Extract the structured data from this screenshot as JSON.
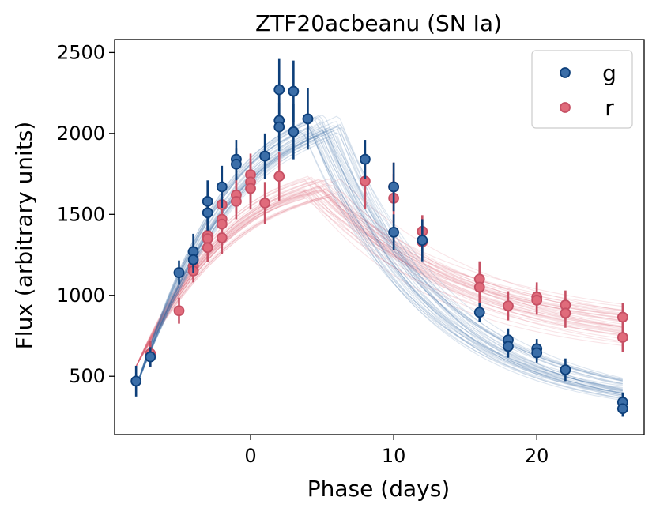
{
  "chart_data": {
    "type": "scatter",
    "title": "ZTF20acbeanu (SN Ia)",
    "xlabel": "Phase (days)",
    "ylabel": "Flux (arbitrary units)",
    "xlim": [
      -9.5,
      27.5
    ],
    "ylim": [
      140,
      2580
    ],
    "xticks": [
      0,
      10,
      20
    ],
    "yticks": [
      500,
      1000,
      1500,
      2000,
      2500
    ],
    "legend_position": "top-right",
    "grid": false,
    "colors": {
      "g": "#3b6ea8",
      "g_edge": "#0d3f7a",
      "r": "#e06b7b",
      "r_edge": "#c65064"
    },
    "series": [
      {
        "name": "g",
        "points": [
          {
            "x": -8,
            "y": 470,
            "err": 95
          },
          {
            "x": -7,
            "y": 620,
            "err": 60
          },
          {
            "x": -5,
            "y": 1140,
            "err": 75
          },
          {
            "x": -4,
            "y": 1270,
            "err": 110
          },
          {
            "x": -4,
            "y": 1220,
            "err": 80
          },
          {
            "x": -3,
            "y": 1580,
            "err": 130
          },
          {
            "x": -3,
            "y": 1510,
            "err": 110
          },
          {
            "x": -2,
            "y": 1670,
            "err": 130
          },
          {
            "x": -1,
            "y": 1840,
            "err": 120
          },
          {
            "x": -1,
            "y": 1810,
            "err": 100
          },
          {
            "x": 1,
            "y": 1860,
            "err": 140
          },
          {
            "x": 2,
            "y": 2270,
            "err": 190
          },
          {
            "x": 2,
            "y": 2080,
            "err": 170
          },
          {
            "x": 2,
            "y": 2040,
            "err": 150
          },
          {
            "x": 3,
            "y": 2260,
            "err": 190
          },
          {
            "x": 3,
            "y": 2010,
            "err": 170
          },
          {
            "x": 4,
            "y": 2090,
            "err": 190
          },
          {
            "x": 8,
            "y": 1840,
            "err": 120
          },
          {
            "x": 10,
            "y": 1670,
            "err": 150
          },
          {
            "x": 10,
            "y": 1390,
            "err": 110
          },
          {
            "x": 12,
            "y": 1340,
            "err": 130
          },
          {
            "x": 16,
            "y": 895,
            "err": 60
          },
          {
            "x": 18,
            "y": 725,
            "err": 70
          },
          {
            "x": 18,
            "y": 685,
            "err": 70
          },
          {
            "x": 20,
            "y": 670,
            "err": 60
          },
          {
            "x": 20,
            "y": 645,
            "err": 60
          },
          {
            "x": 22,
            "y": 540,
            "err": 70
          },
          {
            "x": 26,
            "y": 340,
            "err": 60
          },
          {
            "x": 26,
            "y": 300,
            "err": 50
          }
        ]
      },
      {
        "name": "r",
        "points": [
          {
            "x": -7,
            "y": 640,
            "err": 80
          },
          {
            "x": -5,
            "y": 905,
            "err": 80
          },
          {
            "x": -4,
            "y": 1180,
            "err": 80
          },
          {
            "x": -4,
            "y": 1150,
            "err": 70
          },
          {
            "x": -3,
            "y": 1370,
            "err": 90
          },
          {
            "x": -3,
            "y": 1350,
            "err": 90
          },
          {
            "x": -3,
            "y": 1295,
            "err": 90
          },
          {
            "x": -2,
            "y": 1560,
            "err": 110
          },
          {
            "x": -2,
            "y": 1470,
            "err": 110
          },
          {
            "x": -2,
            "y": 1440,
            "err": 100
          },
          {
            "x": -2,
            "y": 1355,
            "err": 100
          },
          {
            "x": -1,
            "y": 1620,
            "err": 110
          },
          {
            "x": -1,
            "y": 1580,
            "err": 110
          },
          {
            "x": 0,
            "y": 1745,
            "err": 130
          },
          {
            "x": 0,
            "y": 1700,
            "err": 130
          },
          {
            "x": 0,
            "y": 1660,
            "err": 130
          },
          {
            "x": 1,
            "y": 1570,
            "err": 130
          },
          {
            "x": 2,
            "y": 1735,
            "err": 150
          },
          {
            "x": 8,
            "y": 1705,
            "err": 170
          },
          {
            "x": 10,
            "y": 1670,
            "err": 150
          },
          {
            "x": 10,
            "y": 1600,
            "err": 150
          },
          {
            "x": 12,
            "y": 1395,
            "err": 100
          },
          {
            "x": 12,
            "y": 1330,
            "err": 100
          },
          {
            "x": 16,
            "y": 1100,
            "err": 110
          },
          {
            "x": 16,
            "y": 1050,
            "err": 100
          },
          {
            "x": 18,
            "y": 935,
            "err": 90
          },
          {
            "x": 20,
            "y": 990,
            "err": 90
          },
          {
            "x": 20,
            "y": 970,
            "err": 90
          },
          {
            "x": 22,
            "y": 940,
            "err": 90
          },
          {
            "x": 22,
            "y": 890,
            "err": 90
          },
          {
            "x": 26,
            "y": 865,
            "err": 90
          },
          {
            "x": 26,
            "y": 740,
            "err": 90
          }
        ]
      }
    ],
    "model_curves": {
      "g": {
        "t0": 5,
        "peak": 2100,
        "start": 430,
        "end": 310,
        "count": 40
      },
      "r": {
        "t0": 5,
        "peak": 1720,
        "start": 560,
        "end": 740,
        "count": 40
      }
    }
  }
}
